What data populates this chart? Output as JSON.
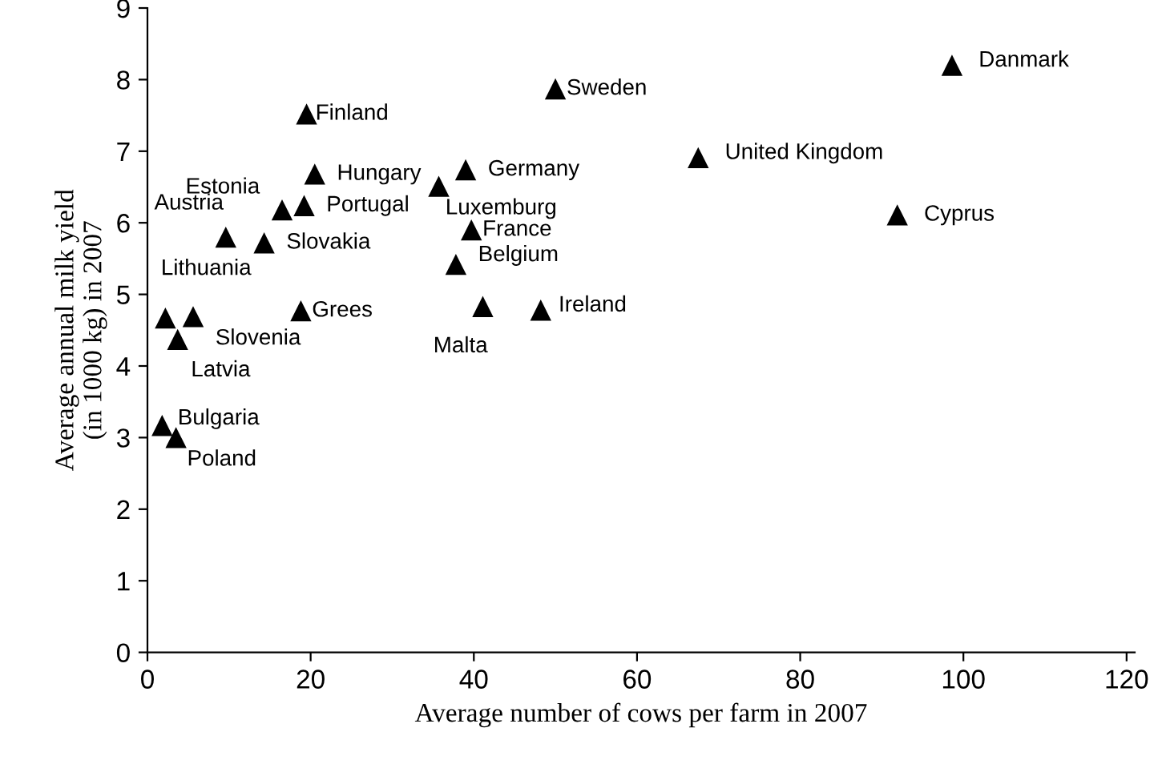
{
  "chart_data": {
    "type": "scatter",
    "xlabel": "Average number of cows per farm in 2007",
    "ylabel": "Average annual milk yield\n(in 1000 kg) in 2007",
    "x": [
      19.5,
      20.5,
      16.5,
      19.2,
      9.6,
      14.3,
      2.2,
      5.6,
      3.7,
      18.8,
      35.7,
      39.0,
      39.7,
      37.8,
      41.1,
      48.2,
      50.0,
      1.8,
      3.5,
      67.5,
      98.6,
      91.9
    ],
    "series": [
      {
        "color": "#000000",
        "values": [
          7.52,
          6.68,
          6.18,
          6.24,
          5.8,
          5.72,
          4.67,
          4.69,
          4.37,
          4.77,
          6.51,
          6.74,
          5.9,
          5.42,
          4.83,
          4.78,
          7.87,
          3.17,
          3.0,
          6.91,
          8.2,
          6.11
        ]
      }
    ],
    "annotations": [
      {
        "text": "Finland",
        "x": 19.5,
        "y": 7.52
      },
      {
        "text": "Hungary",
        "x": 20.5,
        "y": 6.68
      },
      {
        "text": "Estonia",
        "x": 16.5,
        "y": 6.18
      },
      {
        "text": "Portugal",
        "x": 19.2,
        "y": 6.24
      },
      {
        "text": "Austria",
        "x": 9.6,
        "y": 5.8
      },
      {
        "text": "Slovakia",
        "x": 14.3,
        "y": 5.72
      },
      {
        "text": "Lithuania",
        "x": 2.2,
        "y": 4.67
      },
      {
        "text": "Slovenia",
        "x": 5.6,
        "y": 4.69
      },
      {
        "text": "Latvia",
        "x": 3.7,
        "y": 4.37
      },
      {
        "text": "Grees",
        "x": 18.8,
        "y": 4.77
      },
      {
        "text": "Luxemburg",
        "x": 35.7,
        "y": 6.51
      },
      {
        "text": "Germany",
        "x": 39.0,
        "y": 6.74
      },
      {
        "text": "France",
        "x": 39.7,
        "y": 5.9
      },
      {
        "text": "Belgium",
        "x": 37.8,
        "y": 5.42
      },
      {
        "text": "Malta",
        "x": 41.1,
        "y": 4.83
      },
      {
        "text": "Ireland",
        "x": 48.2,
        "y": 4.78
      },
      {
        "text": "Sweden",
        "x": 50.0,
        "y": 7.87
      },
      {
        "text": "Bulgaria",
        "x": 1.8,
        "y": 3.17
      },
      {
        "text": "Poland",
        "x": 3.5,
        "y": 3.0
      },
      {
        "text": "United Kingdom",
        "x": 67.5,
        "y": 6.91
      },
      {
        "text": "Danmark",
        "x": 98.6,
        "y": 8.2
      },
      {
        "text": "Cyprus",
        "x": 91.9,
        "y": 6.11
      }
    ],
    "xlim": [
      0,
      121
    ],
    "ylim": [
      0,
      9
    ],
    "xticks": [
      0,
      20,
      40,
      60,
      80,
      100,
      120
    ],
    "yticks": [
      0,
      1,
      2,
      3,
      4,
      5,
      6,
      7,
      8,
      9
    ],
    "marker": "triangle",
    "grid": false,
    "legend": false
  }
}
